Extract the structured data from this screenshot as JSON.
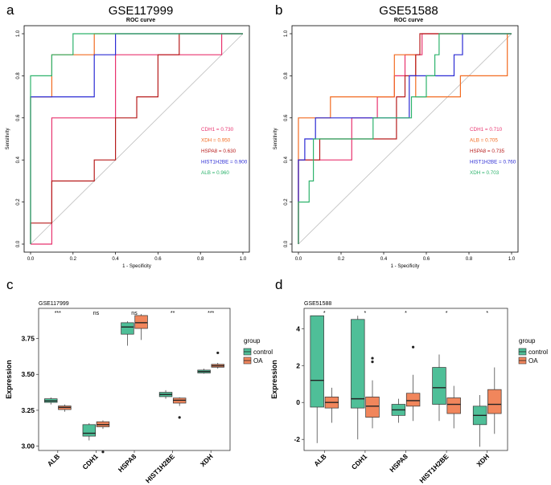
{
  "chart_data": [
    {
      "type": "line",
      "panel_letter": "a",
      "title": "GSE117999",
      "subtitle": "ROC curve",
      "xlabel": "1 - Specificity",
      "ylabel": "Sensitivity",
      "xlim": [
        0,
        1
      ],
      "ylim": [
        0,
        1
      ],
      "ticks": [
        "0.0",
        "0.2",
        "0.4",
        "0.6",
        "0.8",
        "1.0"
      ],
      "series": [
        {
          "name": "CDH1 = 0.730",
          "color": "#e8336e",
          "x": [
            0,
            0.1,
            0.1,
            0.4,
            0.4,
            0.9,
            0.9,
            1
          ],
          "y": [
            0,
            0,
            0.6,
            0.6,
            0.9,
            0.9,
            1,
            1
          ]
        },
        {
          "name": "XDH = 0.950",
          "color": "#f26b21",
          "x": [
            0,
            0,
            0.1,
            0.1,
            0.3,
            0.3,
            1
          ],
          "y": [
            0,
            0.7,
            0.7,
            0.9,
            0.9,
            1,
            1
          ]
        },
        {
          "name": "HSPA8 = 0.630",
          "color": "#b71c1c",
          "x": [
            0,
            0,
            0.1,
            0.1,
            0.3,
            0.3,
            0.4,
            0.4,
            0.5,
            0.5,
            0.6,
            0.6,
            0.7,
            0.7,
            1
          ],
          "y": [
            0,
            0.1,
            0.1,
            0.3,
            0.3,
            0.4,
            0.4,
            0.6,
            0.6,
            0.7,
            0.7,
            0.9,
            0.9,
            1,
            1
          ]
        },
        {
          "name": "HIST1H2BE = 0.900",
          "color": "#2b2bd4",
          "x": [
            0,
            0,
            0.3,
            0.3,
            0.4,
            0.4,
            1
          ],
          "y": [
            0,
            0.7,
            0.7,
            0.9,
            0.9,
            1,
            1
          ]
        },
        {
          "name": "ALB = 0.960",
          "color": "#2db36c",
          "x": [
            0,
            0,
            0.1,
            0.1,
            0.2,
            0.2,
            1
          ],
          "y": [
            0,
            0.8,
            0.8,
            0.9,
            0.9,
            1,
            1
          ]
        }
      ]
    },
    {
      "type": "line",
      "panel_letter": "b",
      "title": "GSE51588",
      "subtitle": "ROC curve",
      "xlabel": "1 - Specificity",
      "ylabel": "Sensitivity",
      "xlim": [
        0,
        1
      ],
      "ylim": [
        0,
        1
      ],
      "ticks": [
        "0.0",
        "0.2",
        "0.4",
        "0.6",
        "0.8",
        "1.0"
      ],
      "series": [
        {
          "name": "CDH1 = 0.710",
          "color": "#e8336e",
          "x": [
            0,
            0,
            0.02,
            0.02,
            0.25,
            0.25,
            0.37,
            0.37,
            0.45,
            0.45,
            0.5,
            0.5,
            0.58,
            0.58,
            0.63,
            0.63,
            1
          ],
          "y": [
            0,
            0.4,
            0.4,
            0.4,
            0.4,
            0.6,
            0.6,
            0.7,
            0.7,
            0.8,
            0.8,
            0.9,
            0.9,
            1,
            1,
            1,
            1
          ]
        },
        {
          "name": "ALB = 0.705",
          "color": "#f26b21",
          "x": [
            0,
            0,
            0.06,
            0.06,
            0.15,
            0.15,
            0.45,
            0.45,
            0.55,
            0.55,
            0.76,
            0.76,
            0.98,
            0.98,
            1
          ],
          "y": [
            0,
            0.6,
            0.6,
            0.6,
            0.6,
            0.7,
            0.7,
            0.9,
            0.9,
            0.7,
            0.7,
            0.8,
            0.8,
            1,
            1
          ]
        },
        {
          "name": "HSPA8 = 0.735",
          "color": "#b71c1c",
          "x": [
            0,
            0,
            0.1,
            0.1,
            0.46,
            0.46,
            0.5,
            0.5,
            0.55,
            0.55,
            0.57,
            0.57,
            0.6,
            0.6,
            1
          ],
          "y": [
            0,
            0.4,
            0.4,
            0.5,
            0.5,
            0.7,
            0.7,
            0.8,
            0.8,
            0.9,
            0.9,
            1,
            1,
            1,
            1
          ]
        },
        {
          "name": "HIST1H2BE = 0.760",
          "color": "#2b2bd4",
          "x": [
            0,
            0,
            0.03,
            0.03,
            0.08,
            0.08,
            0.52,
            0.52,
            0.6,
            0.6,
            0.73,
            0.73,
            0.77,
            0.77,
            1
          ],
          "y": [
            0,
            0.4,
            0.4,
            0.5,
            0.5,
            0.6,
            0.6,
            0.8,
            0.8,
            0.8,
            0.8,
            0.9,
            0.9,
            1,
            1
          ]
        },
        {
          "name": "XDH = 0.703",
          "color": "#2db36c",
          "x": [
            0,
            0,
            0.05,
            0.05,
            0.07,
            0.07,
            0.35,
            0.35,
            0.53,
            0.53,
            0.6,
            0.6,
            0.64,
            0.64,
            0.66,
            0.66,
            0.7,
            0.7,
            1
          ],
          "y": [
            0,
            0.2,
            0.2,
            0.3,
            0.3,
            0.5,
            0.5,
            0.6,
            0.6,
            0.7,
            0.7,
            0.8,
            0.8,
            0.9,
            0.9,
            1,
            1,
            1,
            1
          ]
        }
      ]
    },
    {
      "type": "box",
      "panel_letter": "c",
      "title": "GSE117999",
      "xlabel": "",
      "ylabel": "Expression",
      "ylim": [
        2.97,
        3.96
      ],
      "yticks": [
        3.0,
        3.25,
        3.5,
        3.75
      ],
      "ytick_labels": [
        "3.00",
        "3.25",
        "3.50",
        "3.75"
      ],
      "categories": [
        "ALB",
        "CDH1",
        "HSPA8",
        "HIST1H2BE",
        "XDH"
      ],
      "significance": [
        "***",
        "ns",
        "ns",
        "**",
        "***"
      ],
      "legend_title": "group",
      "legend_position": "right",
      "groups": [
        {
          "name": "control",
          "color": "#4fbf98"
        },
        {
          "name": "OA",
          "color": "#f1865c"
        }
      ],
      "boxes": [
        [
          {
            "min": 3.29,
            "q1": 3.305,
            "median": 3.315,
            "q3": 3.33,
            "max": 3.34,
            "outliers": []
          },
          {
            "min": 3.24,
            "q1": 3.255,
            "median": 3.27,
            "q3": 3.28,
            "max": 3.29,
            "outliers": []
          }
        ],
        [
          {
            "min": 3.04,
            "q1": 3.07,
            "median": 3.09,
            "q3": 3.15,
            "max": 3.16,
            "outliers": []
          },
          {
            "min": 3.12,
            "q1": 3.135,
            "median": 3.15,
            "q3": 3.17,
            "max": 3.18,
            "outliers": [
              2.96
            ]
          }
        ],
        [
          {
            "min": 3.7,
            "q1": 3.78,
            "median": 3.83,
            "q3": 3.86,
            "max": 3.87,
            "outliers": []
          },
          {
            "min": 3.74,
            "q1": 3.82,
            "median": 3.86,
            "q3": 3.91,
            "max": 3.92,
            "outliers": []
          }
        ],
        [
          {
            "min": 3.33,
            "q1": 3.345,
            "median": 3.36,
            "q3": 3.375,
            "max": 3.39,
            "outliers": []
          },
          {
            "min": 3.28,
            "q1": 3.3,
            "median": 3.32,
            "q3": 3.335,
            "max": 3.34,
            "outliers": [
              3.2
            ]
          }
        ],
        [
          {
            "min": 3.505,
            "q1": 3.51,
            "median": 3.52,
            "q3": 3.53,
            "max": 3.54,
            "outliers": []
          },
          {
            "min": 3.54,
            "q1": 3.55,
            "median": 3.56,
            "q3": 3.57,
            "max": 3.58,
            "outliers": [
              3.65
            ]
          }
        ]
      ]
    },
    {
      "type": "box",
      "panel_letter": "d",
      "title": "GSE51588",
      "xlabel": "",
      "ylabel": "Expression",
      "ylim": [
        -2.6,
        5.1
      ],
      "yticks": [
        -2,
        0,
        2,
        4
      ],
      "ytick_labels": [
        "-2",
        "0",
        "2",
        "4"
      ],
      "categories": [
        "ALB",
        "CDH1",
        "HSPA8",
        "HIST1H2BE",
        "XDH"
      ],
      "significance": [
        "*",
        "*",
        "*",
        "*",
        "*"
      ],
      "legend_title": "group",
      "legend_position": "right",
      "groups": [
        {
          "name": "control",
          "color": "#4fbf98"
        },
        {
          "name": "OA",
          "color": "#f1865c"
        }
      ],
      "boxes": [
        [
          {
            "min": -2.2,
            "q1": -0.25,
            "median": 1.2,
            "q3": 4.7,
            "max": 4.7,
            "outliers": []
          },
          {
            "min": -1.1,
            "q1": -0.3,
            "median": 0.0,
            "q3": 0.3,
            "max": 0.8,
            "outliers": []
          }
        ],
        [
          {
            "min": -2.0,
            "q1": -0.3,
            "median": 0.2,
            "q3": 4.5,
            "max": 4.7,
            "outliers": []
          },
          {
            "min": -1.4,
            "q1": -0.8,
            "median": -0.2,
            "q3": 0.3,
            "max": 1.2,
            "outliers": [
              2.2,
              2.4
            ]
          }
        ],
        [
          {
            "min": -1.1,
            "q1": -0.7,
            "median": -0.4,
            "q3": -0.1,
            "max": 0.2,
            "outliers": []
          },
          {
            "min": -1.0,
            "q1": -0.2,
            "median": 0.1,
            "q3": 0.5,
            "max": 1.5,
            "outliers": [
              3.0
            ]
          }
        ],
        [
          {
            "min": -1.0,
            "q1": -0.1,
            "median": 0.8,
            "q3": 1.9,
            "max": 2.6,
            "outliers": []
          },
          {
            "min": -1.4,
            "q1": -0.6,
            "median": -0.1,
            "q3": 0.25,
            "max": 0.9,
            "outliers": []
          }
        ],
        [
          {
            "min": -2.4,
            "q1": -1.2,
            "median": -0.7,
            "q3": -0.2,
            "max": 0.4,
            "outliers": []
          },
          {
            "min": -1.7,
            "q1": -0.6,
            "median": -0.1,
            "q3": 0.7,
            "max": 1.9,
            "outliers": []
          }
        ]
      ]
    }
  ]
}
